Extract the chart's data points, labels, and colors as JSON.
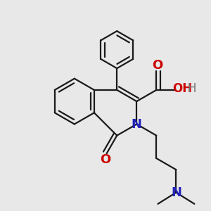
{
  "background_color": "#e8e8e8",
  "bond_color": "#1a1a1a",
  "nitrogen_color": "#2222bb",
  "oxygen_color": "#cc0000",
  "hydrogen_color": "#777777",
  "line_width": 1.6,
  "font_size_atom": 12,
  "fig_size": [
    3.0,
    3.0
  ],
  "dpi": 100,
  "xlim": [
    0,
    10
  ],
  "ylim": [
    0,
    10
  ]
}
